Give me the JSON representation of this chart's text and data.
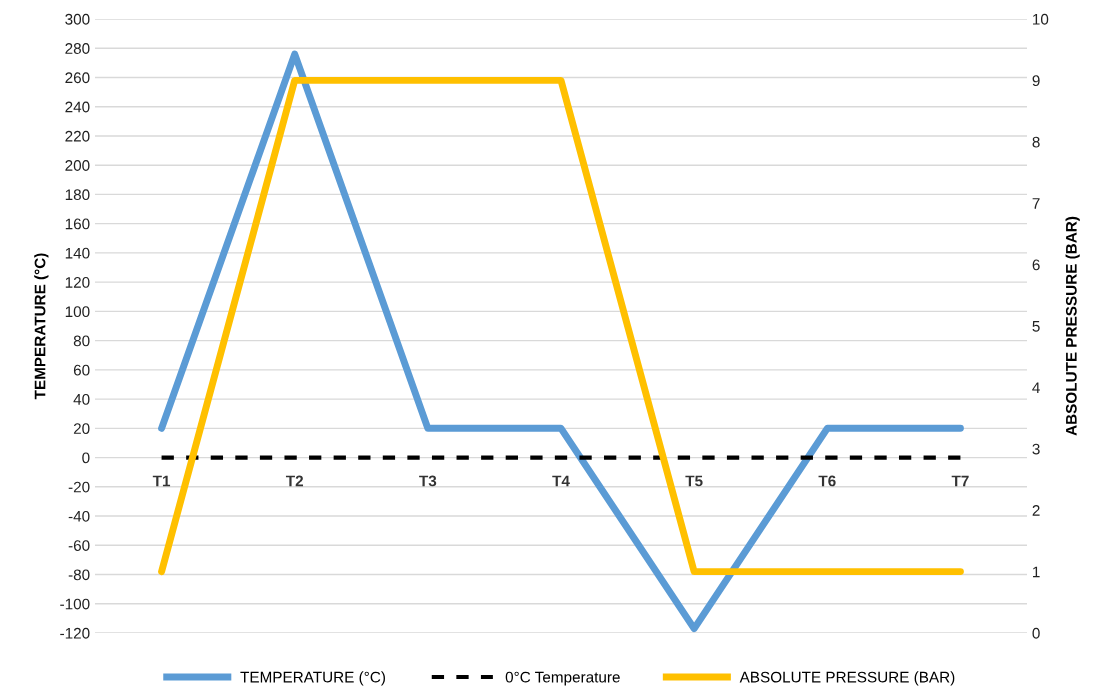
{
  "chart_data": {
    "type": "line",
    "categories": [
      "T1",
      "T2",
      "T3",
      "T4",
      "T5",
      "T6",
      "T7"
    ],
    "series": [
      {
        "name": "TEMPERATURE (°C)",
        "color": "#5b9bd5",
        "values": [
          20,
          276,
          20,
          20,
          -117,
          20,
          20
        ]
      },
      {
        "name": "0°C Temperature",
        "color": "#000000",
        "values": [
          0,
          0,
          0,
          0,
          0,
          0,
          0
        ],
        "line_style": "dashed"
      },
      {
        "name": "ABSOLUTE PRESSURE (BAR)",
        "color": "#ffc000",
        "values": [
          1,
          9,
          9,
          9,
          1,
          1,
          1
        ],
        "axis": "y2"
      }
    ],
    "ylabel": "TEMPERATURE (°C)",
    "y2label": "ABSOLUTE PRESSURE (BAR)",
    "ylim": [
      -120,
      300
    ],
    "yticks": [
      -120,
      -100,
      -80,
      -60,
      -40,
      -20,
      0,
      20,
      40,
      60,
      80,
      100,
      120,
      140,
      160,
      180,
      200,
      220,
      240,
      260,
      280,
      300
    ],
    "y2lim": [
      0,
      10
    ],
    "y2ticks": [
      0,
      1,
      2,
      3,
      4,
      5,
      6,
      7,
      8,
      9,
      10
    ],
    "grid": "y",
    "legend": "bottom",
    "marker": "none",
    "line_style": "solid"
  }
}
